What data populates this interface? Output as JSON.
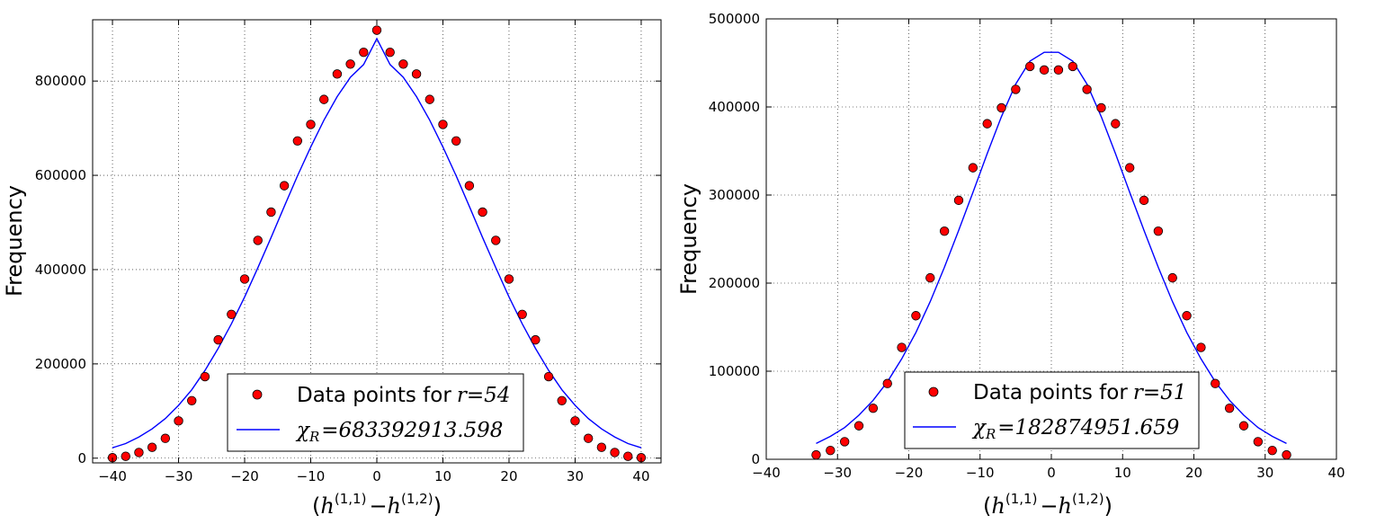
{
  "chart_data": [
    {
      "type": "scatter+line",
      "ylabel": "Frequency",
      "xlabel": "(h^(1,1) − h^(1,2))",
      "xlabel_main": "h",
      "xlabel_sup1": "(1,1)",
      "xlabel_sup2": "(1,2)",
      "xlim": [
        -43,
        43
      ],
      "ylim": [
        -10000,
        930000
      ],
      "xticks": [
        -40,
        -30,
        -20,
        -10,
        0,
        10,
        20,
        30,
        40
      ],
      "yticks": [
        0,
        200000,
        400000,
        600000,
        800000
      ],
      "grid": true,
      "legend_position": "lower-center",
      "scatter_label": "Data points for r = 54",
      "scatter_label_text": "Data points for",
      "scatter_label_var": "r",
      "scatter_label_value": "=54",
      "line_label_var": "χ",
      "line_label_sub": "R",
      "line_label_value": "=683392913.598",
      "scatter_color": "#ff0000",
      "line_color": "#0000ff",
      "points": {
        "x": [
          -40,
          -38,
          -36,
          -34,
          -32,
          -30,
          -28,
          -26,
          -24,
          -22,
          -20,
          -18,
          -16,
          -14,
          -12,
          -10,
          -8,
          -6,
          -4,
          -2,
          0,
          2,
          4,
          6,
          8,
          10,
          12,
          14,
          16,
          18,
          20,
          22,
          24,
          26,
          28,
          30,
          32,
          34,
          36,
          38,
          40
        ],
        "y": [
          1000,
          4000,
          12000,
          23000,
          42000,
          79000,
          122000,
          173000,
          251000,
          305000,
          380000,
          462000,
          522000,
          578000,
          673000,
          708000,
          761000,
          815000,
          836000,
          861000,
          908000,
          861000,
          836000,
          815000,
          761000,
          708000,
          673000,
          578000,
          522000,
          462000,
          380000,
          305000,
          251000,
          173000,
          122000,
          79000,
          42000,
          23000,
          12000,
          4000,
          1000
        ]
      },
      "fit": {
        "x": [
          -40,
          -38,
          -36,
          -34,
          -32,
          -30,
          -28,
          -26,
          -24,
          -22,
          -20,
          -18,
          -16,
          -14,
          -12,
          -10,
          -8,
          -6,
          -4,
          -2,
          0,
          2,
          4,
          6,
          8,
          10,
          12,
          14,
          16,
          18,
          20,
          22,
          24,
          26,
          28,
          30,
          32,
          34,
          36,
          38,
          40
        ],
        "y": [
          22000,
          31000,
          45000,
          62000,
          84000,
          112000,
          145000,
          186000,
          233000,
          285000,
          342000,
          404000,
          468000,
          534000,
          599000,
          660000,
          717000,
          767000,
          808000,
          835000,
          890000,
          835000,
          808000,
          767000,
          717000,
          660000,
          599000,
          534000,
          468000,
          404000,
          342000,
          285000,
          233000,
          186000,
          145000,
          112000,
          84000,
          62000,
          45000,
          31000,
          22000
        ]
      }
    },
    {
      "type": "scatter+line",
      "ylabel": "Frequency",
      "xlabel": "(h^(1,1) − h^(1,2))",
      "xlabel_main": "h",
      "xlabel_sup1": "(1,1)",
      "xlabel_sup2": "(1,2)",
      "xlim": [
        -40,
        40
      ],
      "ylim": [
        0,
        500000
      ],
      "xticks": [
        -40,
        -30,
        -20,
        -10,
        0,
        10,
        20,
        30,
        40
      ],
      "yticks": [
        0,
        100000,
        200000,
        300000,
        400000,
        500000
      ],
      "grid": true,
      "legend_position": "lower-center",
      "scatter_label": "Data points for r = 51",
      "scatter_label_text": "Data points for",
      "scatter_label_var": "r",
      "scatter_label_value": "=51",
      "line_label_var": "χ",
      "line_label_sub": "R",
      "line_label_value": "=182874951.659",
      "scatter_color": "#ff0000",
      "line_color": "#0000ff",
      "points": {
        "x": [
          -33,
          -31,
          -29,
          -27,
          -25,
          -23,
          -21,
          -19,
          -17,
          -15,
          -13,
          -11,
          -9,
          -7,
          -5,
          -3,
          -1,
          1,
          3,
          5,
          7,
          9,
          11,
          13,
          15,
          17,
          19,
          21,
          23,
          25,
          27,
          29,
          31,
          33
        ],
        "y": [
          5000,
          10000,
          20000,
          38000,
          58000,
          86000,
          127000,
          163000,
          206000,
          259000,
          294000,
          331000,
          381000,
          399000,
          420000,
          446000,
          442000,
          442000,
          446000,
          420000,
          399000,
          381000,
          331000,
          294000,
          259000,
          206000,
          163000,
          127000,
          86000,
          58000,
          38000,
          20000,
          10000,
          5000
        ]
      },
      "fit": {
        "x": [
          -33,
          -31,
          -29,
          -27,
          -25,
          -23,
          -21,
          -19,
          -17,
          -15,
          -13,
          -11,
          -9,
          -7,
          -5,
          -3,
          -1,
          1,
          3,
          5,
          7,
          9,
          11,
          13,
          15,
          17,
          19,
          21,
          23,
          25,
          27,
          29,
          31,
          33
        ],
        "y": [
          18000,
          26000,
          36000,
          50000,
          67000,
          88000,
          114000,
          144000,
          179000,
          218000,
          260000,
          303000,
          347000,
          389000,
          426000,
          452000,
          462000,
          462000,
          452000,
          426000,
          389000,
          347000,
          303000,
          260000,
          218000,
          179000,
          144000,
          114000,
          88000,
          67000,
          50000,
          36000,
          26000,
          18000
        ]
      }
    }
  ]
}
